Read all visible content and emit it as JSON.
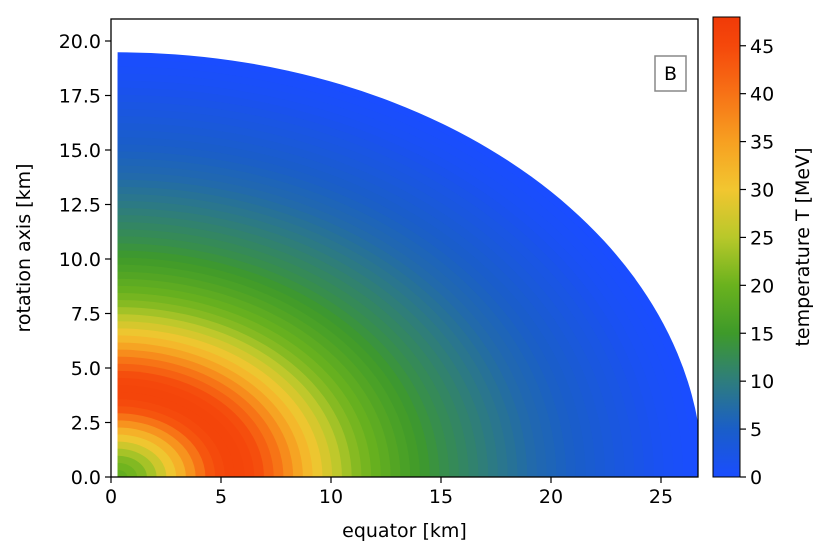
{
  "chart_data": {
    "type": "heatmap",
    "title": "",
    "panel_label": "B",
    "xlabel": "equator [km]",
    "ylabel": "rotation axis [km]",
    "xlim": [
      0,
      27
    ],
    "ylim": [
      0,
      21
    ],
    "x_ticks": [
      0,
      5,
      10,
      15,
      20,
      25
    ],
    "y_ticks": [
      0.0,
      2.5,
      5.0,
      7.5,
      10.0,
      12.5,
      15.0,
      17.5,
      20.0
    ],
    "x_tick_labels": [
      "0",
      "5",
      "10",
      "15",
      "20",
      "25"
    ],
    "y_tick_labels": [
      "0.0",
      "2.5",
      "5.0",
      "7.5",
      "10.0",
      "12.5",
      "15.0",
      "17.5",
      "20.0"
    ],
    "colorbar": {
      "label": "temperature T [MeV]",
      "range": [
        0,
        48
      ],
      "ticks": [
        0,
        5,
        10,
        15,
        20,
        25,
        30,
        35,
        40,
        45
      ],
      "tick_labels": [
        "0",
        "5",
        "10",
        "15",
        "20",
        "25",
        "30",
        "35",
        "40",
        "45"
      ],
      "colormap": [
        {
          "value": 0,
          "color": "#1a4dff"
        },
        {
          "value": 5,
          "color": "#1a5ec8"
        },
        {
          "value": 10,
          "color": "#2e7d7d"
        },
        {
          "value": 15,
          "color": "#3e9a2a"
        },
        {
          "value": 20,
          "color": "#6ab21e"
        },
        {
          "value": 25,
          "color": "#b8c82a"
        },
        {
          "value": 30,
          "color": "#f2c630"
        },
        {
          "value": 35,
          "color": "#f7a021"
        },
        {
          "value": 40,
          "color": "#f77216"
        },
        {
          "value": 45,
          "color": "#f5480b"
        },
        {
          "value": 48,
          "color": "#f03a08"
        }
      ]
    },
    "star_surface_radius_km": {
      "equator": 26.6,
      "pole": 19.1
    },
    "radial_profile": {
      "r_km": [
        0,
        1.5,
        3,
        4.5,
        5.5,
        6.5,
        7.5,
        9,
        11,
        13,
        15,
        17,
        19,
        21,
        23,
        25,
        26.6
      ],
      "T_MeV": [
        18,
        22,
        32,
        44,
        46,
        45,
        40,
        31,
        22,
        17,
        13,
        10,
        7,
        5,
        3,
        1,
        0
      ]
    }
  }
}
